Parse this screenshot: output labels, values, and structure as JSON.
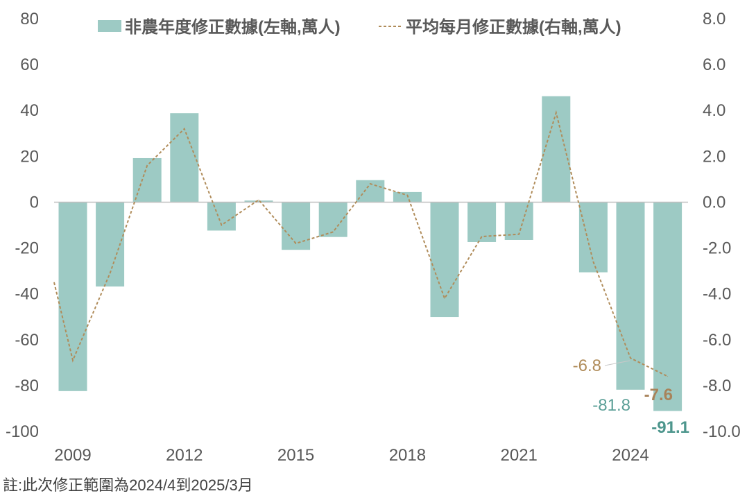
{
  "chart_data": {
    "type": "bar",
    "years": [
      2008,
      2009,
      2010,
      2011,
      2012,
      2013,
      2014,
      2015,
      2016,
      2017,
      2018,
      2019,
      2020,
      2021,
      2022,
      2023,
      2024,
      2025
    ],
    "x_tick_labels": [
      "2009",
      "2012",
      "2015",
      "2018",
      "2021",
      "2024"
    ],
    "left_axis": {
      "ticks": [
        80,
        60,
        40,
        20,
        0,
        -20,
        -40,
        -60,
        -80,
        -100
      ],
      "ylim": [
        -100,
        80
      ]
    },
    "right_axis": {
      "ticks": [
        "8.0",
        "6.0",
        "4.0",
        "2.0",
        "0.0",
        "-2.0",
        "-4.0",
        "-6.0",
        "-8.0",
        "-10.0"
      ],
      "ylim": [
        -10,
        8
      ]
    },
    "series": [
      {
        "name": "非農年度修正數據(左軸,萬人)",
        "kind": "bar",
        "axis": "left",
        "color": "#9dcac4",
        "values": [
          null,
          -82.4,
          -36.8,
          19.2,
          38.8,
          -12.4,
          0.7,
          -20.8,
          -15.2,
          9.6,
          4.4,
          -50.1,
          -17.4,
          -16.5,
          46.2,
          -30.6,
          -81.8,
          -91.1
        ]
      },
      {
        "name": "平均每月修正數據(右軸,萬人)",
        "kind": "line",
        "axis": "right",
        "color": "#b08c5a",
        "values": [
          -3.5,
          -6.9,
          -3.1,
          1.6,
          3.2,
          -1.0,
          0.1,
          -1.8,
          -1.3,
          0.8,
          0.3,
          -4.2,
          -1.5,
          -1.4,
          3.9,
          -2.6,
          -6.8,
          -7.6
        ]
      }
    ],
    "annotations": [
      {
        "text": "-6.8",
        "series": "平均每月修正數據(右軸,萬人)",
        "year": 2024,
        "bold": false,
        "color": "#b08c5a"
      },
      {
        "text": "-7.6",
        "series": "平均每月修正數據(右軸,萬人)",
        "year": 2025,
        "bold": true,
        "color": "#a8835a"
      },
      {
        "text": "-81.8",
        "series": "非農年度修正數據(左軸,萬人)",
        "year": 2024,
        "bold": false,
        "color": "#5b9f97"
      },
      {
        "text": "-91.1",
        "series": "非農年度修正數據(左軸,萬人)",
        "year": 2025,
        "bold": true,
        "color": "#4d968d"
      }
    ],
    "grid": false,
    "legend_position": "top"
  },
  "note": "註:此次修正範圍為2024/4到2025/3月"
}
